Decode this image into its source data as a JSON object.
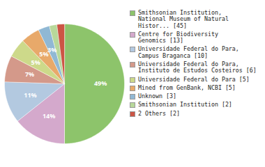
{
  "chart_data": {
    "type": "pie",
    "categories": [
      "Smithsonian Institution,\nNational Museum of Natural\nHistor... [45]",
      "Centre for Biodiversity\nGenomics [13]",
      "Universidade Federal do Para,\nCampus Braganca [10]",
      "Universidade Federal do Para,\nInstituto de Estudos Costeiros [6]",
      "Universidade Federal do Para [5]",
      "Mined from GenBank, NCBI [5]",
      "Unknown [3]",
      "Smithsonian Institution [2]",
      "2 Others [2]"
    ],
    "values": [
      49,
      14,
      11,
      7,
      5,
      5,
      3,
      2,
      2
    ],
    "value_labels": [
      "49%",
      "14%",
      "11%",
      "7%",
      "5%",
      "5%",
      "3%",
      null,
      null
    ],
    "colors": [
      "#8dc46b",
      "#d4a9cc",
      "#b3c9e0",
      "#d4998a",
      "#cdd98a",
      "#e8a96a",
      "#90b8d4",
      "#b8d89a",
      "#cc5544"
    ],
    "data_labels": true,
    "legend": "right"
  }
}
